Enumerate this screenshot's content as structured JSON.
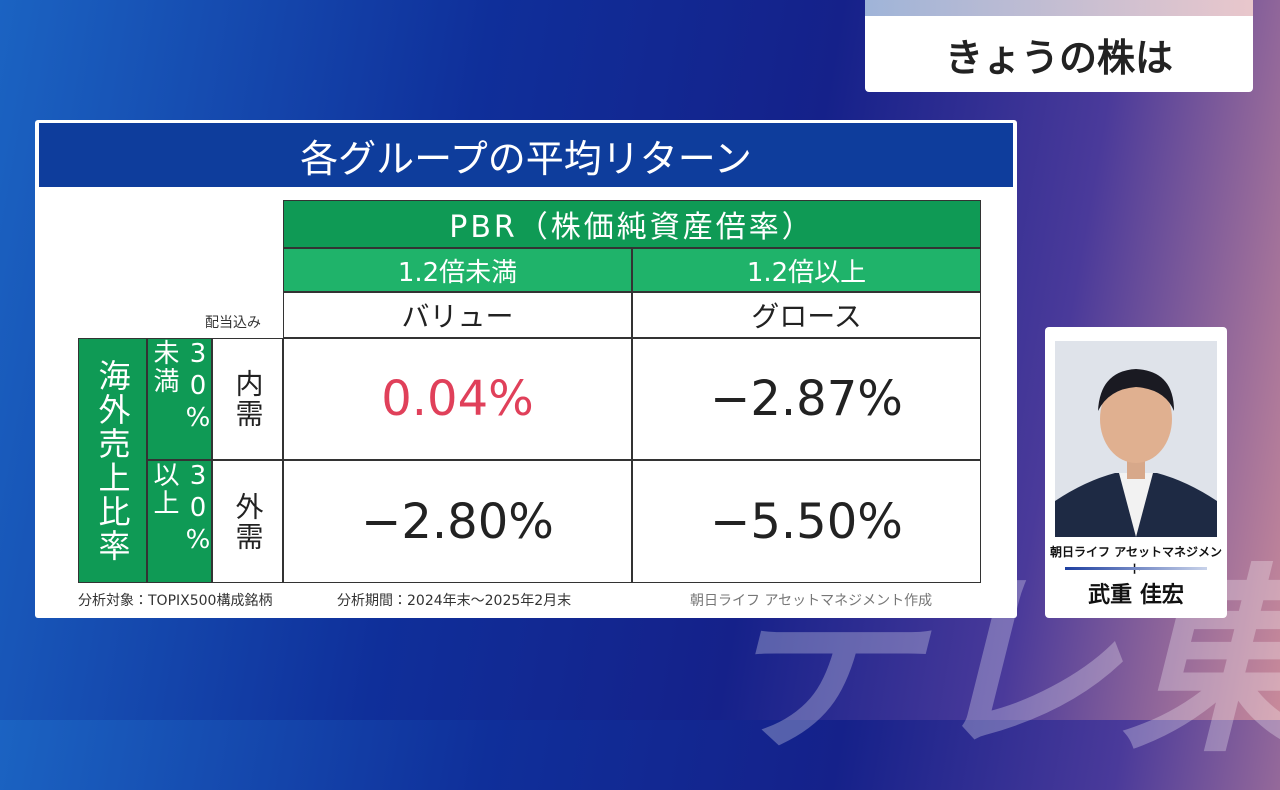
{
  "corner_title": "きょうの株は",
  "panel": {
    "title": "各グループの平均リターン"
  },
  "table": {
    "header": "PBR（株価純資産倍率）",
    "columns": [
      "1.2倍未満",
      "1.2倍以上"
    ],
    "subheaders": [
      "バリュー",
      "グロース"
    ],
    "note": "配当込み",
    "row_group": "海外売上比率",
    "rows": [
      {
        "ratio": "30%未満",
        "label": "内需",
        "cells": [
          "0.04%",
          "−2.87%"
        ]
      },
      {
        "ratio": "30%以上",
        "label": "外需",
        "cells": [
          "−2.80%",
          "−5.50%"
        ]
      }
    ]
  },
  "footer": {
    "target": "分析対象：TOPIX500構成銘柄",
    "period": "分析期間：2024年末〜2025年2月末",
    "source": "朝日ライフ アセットマネジメント作成"
  },
  "person": {
    "company": "朝日ライフ アセットマネジメント",
    "name": "武重 佳宏"
  },
  "watermark": "テレ東"
}
